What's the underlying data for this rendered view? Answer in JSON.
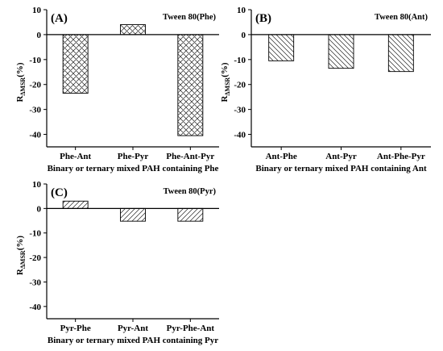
{
  "chart_data": [
    {
      "type": "bar",
      "panel_label": "(A)",
      "title": "Tween 80(Phe)",
      "categories": [
        "Phe-Ant",
        "Phe-Pyr",
        "Phe-Ant-Pyr"
      ],
      "values": [
        -23.5,
        4,
        -40.5
      ],
      "pattern": "crosshatch",
      "xlabel": "Binary or ternary mixed  PAH containing Phe",
      "ylabel": "R",
      "ylabel_sub": "ΔMSR",
      "ylabel_unit": "(%)",
      "ylim": [
        -45,
        10
      ],
      "yticks": [
        10,
        0,
        -10,
        -20,
        -30,
        -40
      ]
    },
    {
      "type": "bar",
      "panel_label": "(B)",
      "title": "Tween 80(Ant)",
      "categories": [
        "Ant-Phe",
        "Ant-Pyr",
        "Ant-Phe-Pyr"
      ],
      "values": [
        -10.5,
        -13.5,
        -14.8
      ],
      "pattern": "backslash",
      "xlabel": "Binary or ternary mixed  PAH containing Ant",
      "ylabel": "R",
      "ylabel_sub": "ΔMSR",
      "ylabel_unit": "(%)",
      "ylim": [
        -45,
        10
      ],
      "yticks": [
        10,
        0,
        -10,
        -20,
        -30,
        -40
      ]
    },
    {
      "type": "bar",
      "panel_label": "(C)",
      "title": "Tween 80(Pyr)",
      "categories": [
        "Pyr-Phe",
        "Pyr-Ant",
        "Pyr-Phe-Ant"
      ],
      "values": [
        3,
        -5.2,
        -5.2
      ],
      "pattern": "slash",
      "xlabel": "Binary or ternary mixed  PAH containing Pyr",
      "ylabel": "R",
      "ylabel_sub": "ΔMSR",
      "ylabel_unit": "(%)",
      "ylim": [
        -45,
        10
      ],
      "yticks": [
        10,
        0,
        -10,
        -20,
        -30,
        -40
      ]
    }
  ]
}
